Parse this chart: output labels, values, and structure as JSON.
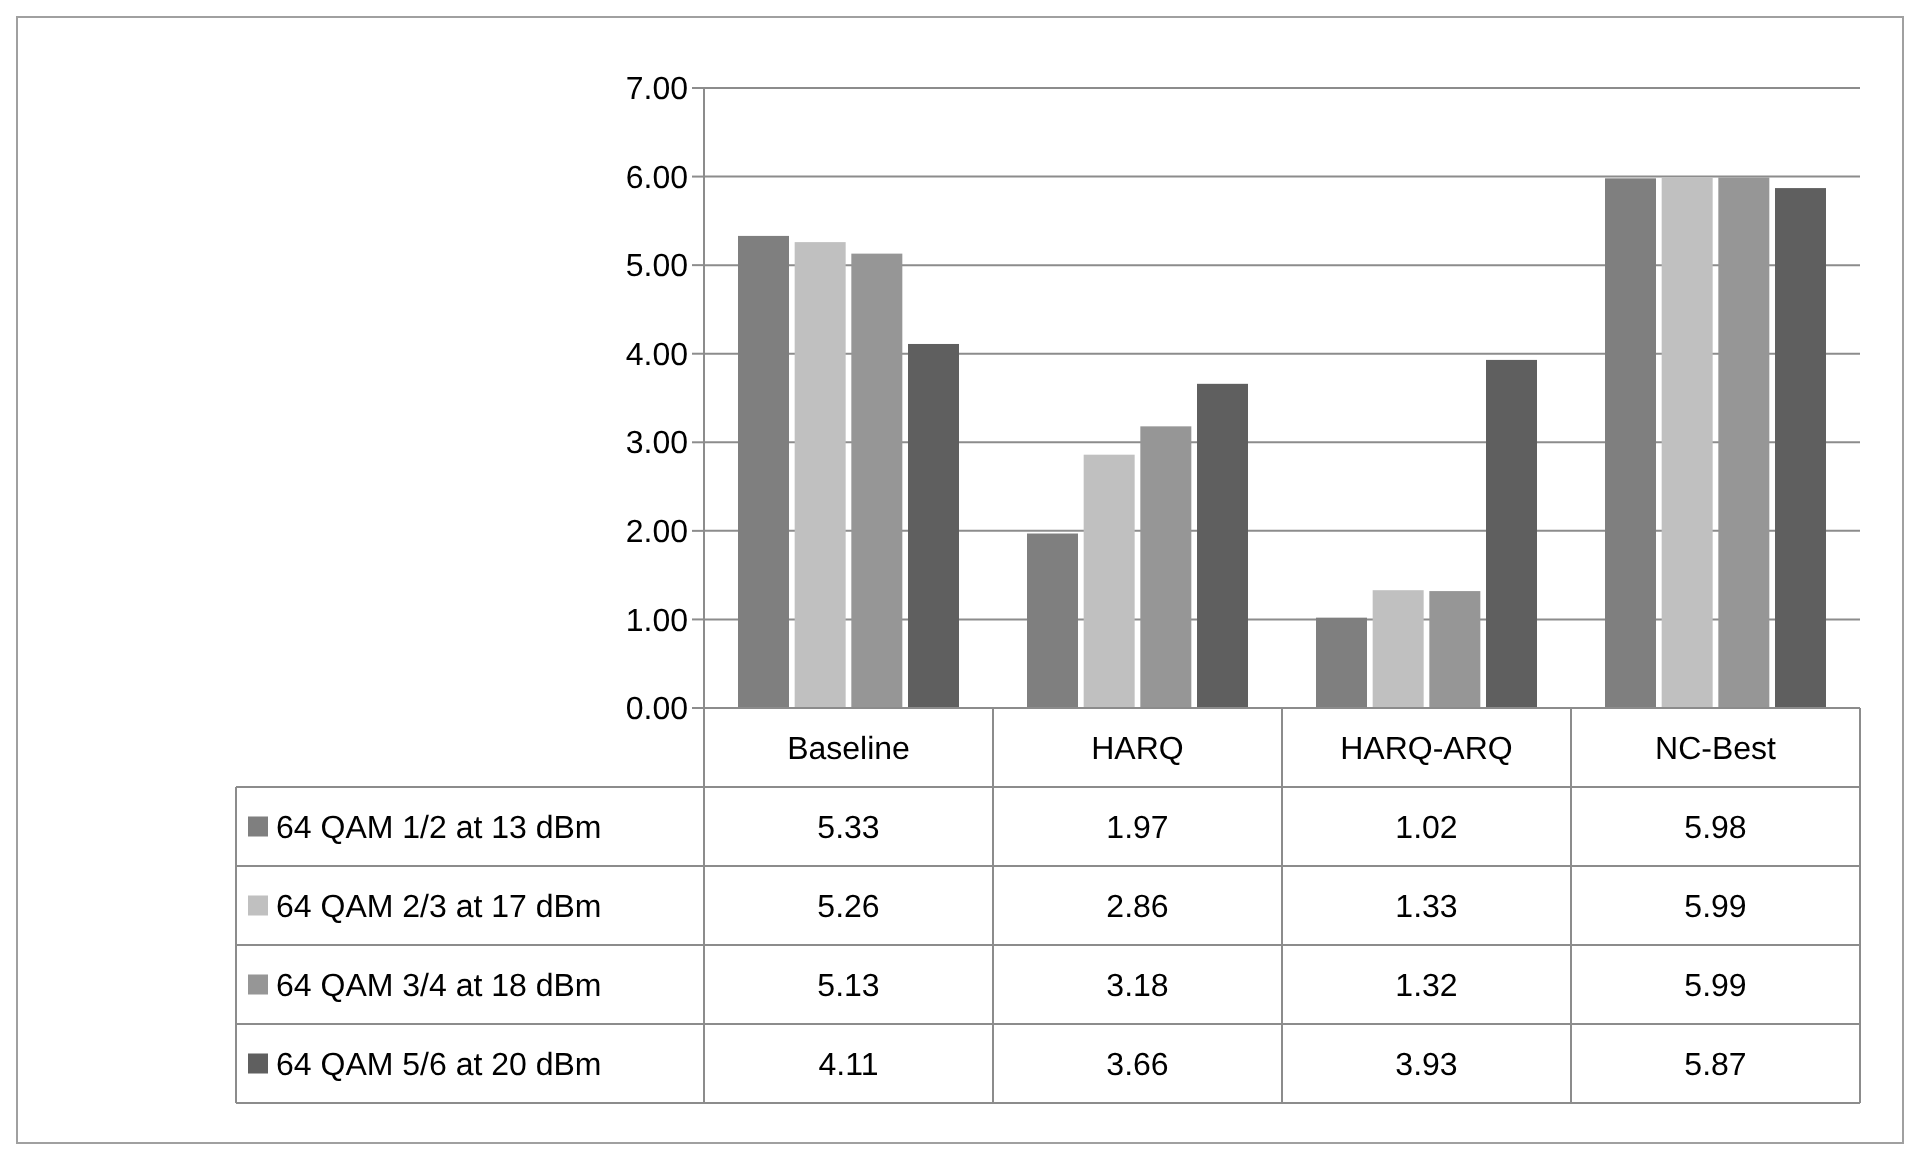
{
  "chart_data": {
    "type": "bar",
    "categories": [
      "Baseline",
      "HARQ",
      "HARQ-ARQ",
      "NC-Best"
    ],
    "series": [
      {
        "name": "64 QAM 1/2 at 13 dBm",
        "color": "#7f7f7f",
        "values": [
          5.33,
          1.97,
          1.02,
          5.98
        ]
      },
      {
        "name": "64 QAM 2/3 at 17 dBm",
        "color": "#c0c0c0",
        "values": [
          5.26,
          2.86,
          1.33,
          5.99
        ]
      },
      {
        "name": "64 QAM 3/4 at 18 dBm",
        "color": "#969696",
        "values": [
          5.13,
          3.18,
          1.32,
          5.99
        ]
      },
      {
        "name": "64 QAM 5/6 at 20 dBm",
        "color": "#5f5f5f",
        "values": [
          4.11,
          3.66,
          3.93,
          5.87
        ]
      }
    ],
    "ylim": [
      0,
      7
    ],
    "yticks": [
      {
        "value": 0,
        "label": "0.00"
      },
      {
        "value": 1,
        "label": "1.00"
      },
      {
        "value": 2,
        "label": "2.00"
      },
      {
        "value": 3,
        "label": "3.00"
      },
      {
        "value": 4,
        "label": "4.00"
      },
      {
        "value": 5,
        "label": "5.00"
      },
      {
        "value": 6,
        "label": "6.00"
      },
      {
        "value": 7,
        "label": "7.00"
      }
    ],
    "grid": "y",
    "legend": "bottom",
    "data_labels": true
  }
}
